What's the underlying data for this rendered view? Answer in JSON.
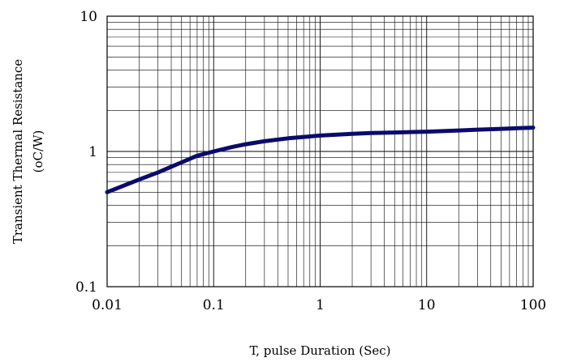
{
  "chart_data": {
    "type": "line",
    "title": "",
    "xlabel": "T, pulse Duration (Sec)",
    "ylabel": [
      "Transient Thermal Resistance",
      "(oC/W)"
    ],
    "xscale": "log",
    "yscale": "log",
    "xlim": [
      0.01,
      100
    ],
    "ylim": [
      0.1,
      10
    ],
    "grid": true,
    "legend": "none",
    "x_ticks": [
      "0.01",
      "0.1",
      "1",
      "10",
      "100"
    ],
    "y_ticks": [
      "0.1",
      "1",
      "10"
    ],
    "line_color": "#0a0a6e",
    "series": [
      {
        "x": [
          0.01,
          0.02,
          0.03,
          0.05,
          0.07,
          0.1,
          0.15,
          0.2,
          0.3,
          0.5,
          0.7,
          1,
          2,
          3,
          5,
          10,
          20,
          30,
          50,
          100
        ],
        "y": [
          0.5,
          0.62,
          0.7,
          0.83,
          0.93,
          1.0,
          1.08,
          1.13,
          1.19,
          1.25,
          1.28,
          1.31,
          1.35,
          1.37,
          1.38,
          1.4,
          1.43,
          1.45,
          1.47,
          1.5
        ]
      }
    ]
  }
}
